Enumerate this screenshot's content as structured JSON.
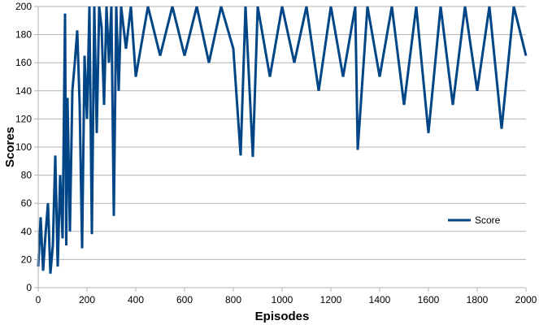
{
  "chart_data": {
    "type": "line",
    "xlabel": "Episodes",
    "ylabel": "Scores",
    "xlim": [
      0,
      2000
    ],
    "ylim": [
      0,
      200
    ],
    "x_ticks": [
      0,
      200,
      400,
      600,
      800,
      1000,
      1200,
      1400,
      1600,
      1800,
      2000
    ],
    "y_ticks": [
      0,
      20,
      40,
      60,
      80,
      100,
      120,
      140,
      160,
      180,
      200
    ],
    "grid": true,
    "legend_position": "right",
    "series": [
      {
        "name": "Score",
        "color": "#004586",
        "x": [
          0,
          10,
          20,
          30,
          40,
          50,
          60,
          70,
          80,
          90,
          100,
          110,
          115,
          120,
          130,
          140,
          150,
          160,
          170,
          180,
          190,
          200,
          210,
          220,
          230,
          240,
          250,
          260,
          270,
          280,
          290,
          300,
          310,
          320,
          330,
          340,
          360,
          380,
          400,
          450,
          500,
          550,
          600,
          650,
          700,
          750,
          800,
          830,
          850,
          880,
          900,
          950,
          1000,
          1050,
          1100,
          1150,
          1200,
          1250,
          1300,
          1310,
          1350,
          1400,
          1450,
          1500,
          1550,
          1600,
          1650,
          1700,
          1750,
          1800,
          1850,
          1900,
          1950,
          2000
        ],
        "values": [
          15,
          50,
          12,
          38,
          60,
          10,
          30,
          94,
          15,
          80,
          35,
          195,
          30,
          135,
          40,
          140,
          160,
          183,
          130,
          28,
          165,
          120,
          200,
          38,
          200,
          110,
          200,
          185,
          130,
          200,
          160,
          200,
          51,
          200,
          140,
          200,
          170,
          200,
          150,
          200,
          165,
          200,
          165,
          200,
          160,
          200,
          170,
          94,
          200,
          93,
          200,
          150,
          200,
          160,
          200,
          140,
          200,
          150,
          200,
          98,
          200,
          150,
          200,
          130,
          200,
          110,
          200,
          130,
          200,
          140,
          200,
          113,
          200,
          165
        ]
      }
    ]
  }
}
